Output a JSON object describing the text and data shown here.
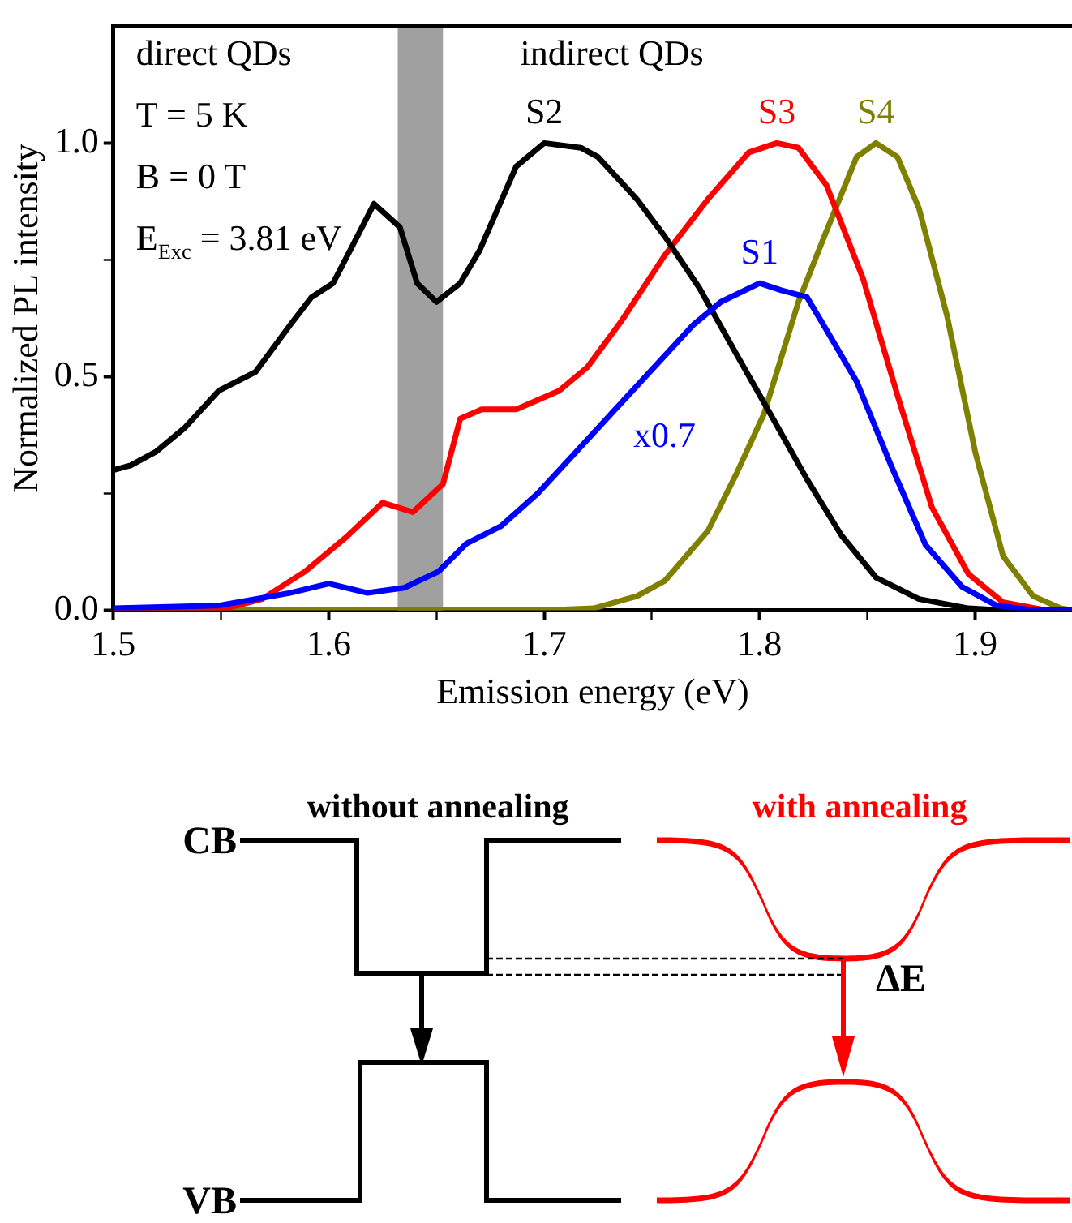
{
  "chart_data": [
    {
      "type": "line",
      "xlabel": "Emission energy (eV)",
      "ylabel": "Normalized PL intensity",
      "xlim": [
        1.5,
        1.945
      ],
      "ylim": [
        0,
        1.25
      ],
      "xticks": [
        1.5,
        {
          "value": 1.55,
          "label": null
        },
        1.6,
        {
          "value": 1.65,
          "label": null
        },
        1.7,
        {
          "value": 1.75,
          "label": null
        },
        1.8,
        {
          "value": 1.85,
          "label": null
        },
        1.9
      ],
      "yticks": [
        {
          "value": 0,
          "label": "0.0"
        },
        {
          "value": 0.25,
          "label": null
        },
        0.5,
        {
          "value": 0.75,
          "label": null
        },
        {
          "value": 1,
          "label": "1.0"
        }
      ],
      "grid": false,
      "legend": false,
      "marker": "none",
      "line_style": "solid",
      "bands": [
        {
          "axis": "x",
          "from": 1.632,
          "to": 1.653,
          "color": "#a0a0a0"
        }
      ],
      "annotations": [
        "direct QDs",
        "T = 5 K",
        "B = 0 T",
        "E$_{Exc}$ = 3.81 eV",
        "indirect QDs",
        "x0.7"
      ],
      "series": [
        {
          "name": "S1",
          "color": "#0000ff",
          "x": [
            1.5,
            1.549,
            1.582,
            1.6,
            1.618,
            1.635,
            1.651,
            1.664,
            1.68,
            1.697,
            1.713,
            1.733,
            1.753,
            1.769,
            1.782,
            1.8,
            1.81,
            1.822,
            1.831,
            1.845,
            1.861,
            1.877,
            1.894,
            1.91,
            1.927,
            1.945
          ],
          "values": [
            0.004,
            0.01,
            0.037,
            0.057,
            0.037,
            0.048,
            0.083,
            0.143,
            0.18,
            0.25,
            0.33,
            0.43,
            0.53,
            0.61,
            0.66,
            0.7,
            0.685,
            0.67,
            0.6,
            0.49,
            0.31,
            0.14,
            0.05,
            0.01,
            0,
            0
          ]
        },
        {
          "name": "S2",
          "color": "#000000",
          "x": [
            1.5,
            1.508,
            1.52,
            1.533,
            1.549,
            1.566,
            1.582,
            1.592,
            1.602,
            1.611,
            1.621,
            1.633,
            1.641,
            1.65,
            1.661,
            1.67,
            1.687,
            1.7,
            1.717,
            1.725,
            1.743,
            1.756,
            1.772,
            1.789,
            1.805,
            1.822,
            1.838,
            1.854,
            1.874,
            1.897,
            1.913,
            1.945
          ],
          "values": [
            0.3,
            0.31,
            0.34,
            0.39,
            0.47,
            0.51,
            0.61,
            0.67,
            0.7,
            0.78,
            0.87,
            0.82,
            0.7,
            0.66,
            0.7,
            0.77,
            0.95,
            1.0,
            0.99,
            0.97,
            0.88,
            0.8,
            0.69,
            0.55,
            0.42,
            0.28,
            0.16,
            0.07,
            0.024,
            0.004,
            0,
            0
          ]
        },
        {
          "name": "S3",
          "color": "#ff0000",
          "x": [
            1.5,
            1.549,
            1.569,
            1.589,
            1.608,
            1.625,
            1.639,
            1.653,
            1.661,
            1.671,
            1.687,
            1.707,
            1.72,
            1.736,
            1.756,
            1.776,
            1.795,
            1.808,
            1.818,
            1.831,
            1.848,
            1.864,
            1.88,
            1.897,
            1.913,
            1.933,
            1.945
          ],
          "values": [
            0,
            0,
            0.024,
            0.083,
            0.156,
            0.23,
            0.21,
            0.27,
            0.41,
            0.43,
            0.43,
            0.47,
            0.52,
            0.62,
            0.76,
            0.88,
            0.98,
            1.0,
            0.99,
            0.91,
            0.71,
            0.46,
            0.22,
            0.077,
            0.017,
            0,
            0
          ]
        },
        {
          "name": "S4",
          "color": "#808000",
          "x": [
            1.5,
            1.7,
            1.723,
            1.743,
            1.756,
            1.776,
            1.789,
            1.802,
            1.818,
            1.83,
            1.845,
            1.854,
            1.864,
            1.874,
            1.887,
            1.9,
            1.913,
            1.927,
            1.94,
            1.945
          ],
          "values": [
            0,
            0,
            0.004,
            0.03,
            0.063,
            0.17,
            0.29,
            0.42,
            0.66,
            0.8,
            0.97,
            1.0,
            0.97,
            0.86,
            0.63,
            0.34,
            0.116,
            0.03,
            0.004,
            0
          ]
        }
      ]
    },
    {
      "type": "other",
      "annotations": [
        "without annealing",
        "with annealing",
        "CB",
        "VB",
        "ΔE"
      ]
    }
  ]
}
